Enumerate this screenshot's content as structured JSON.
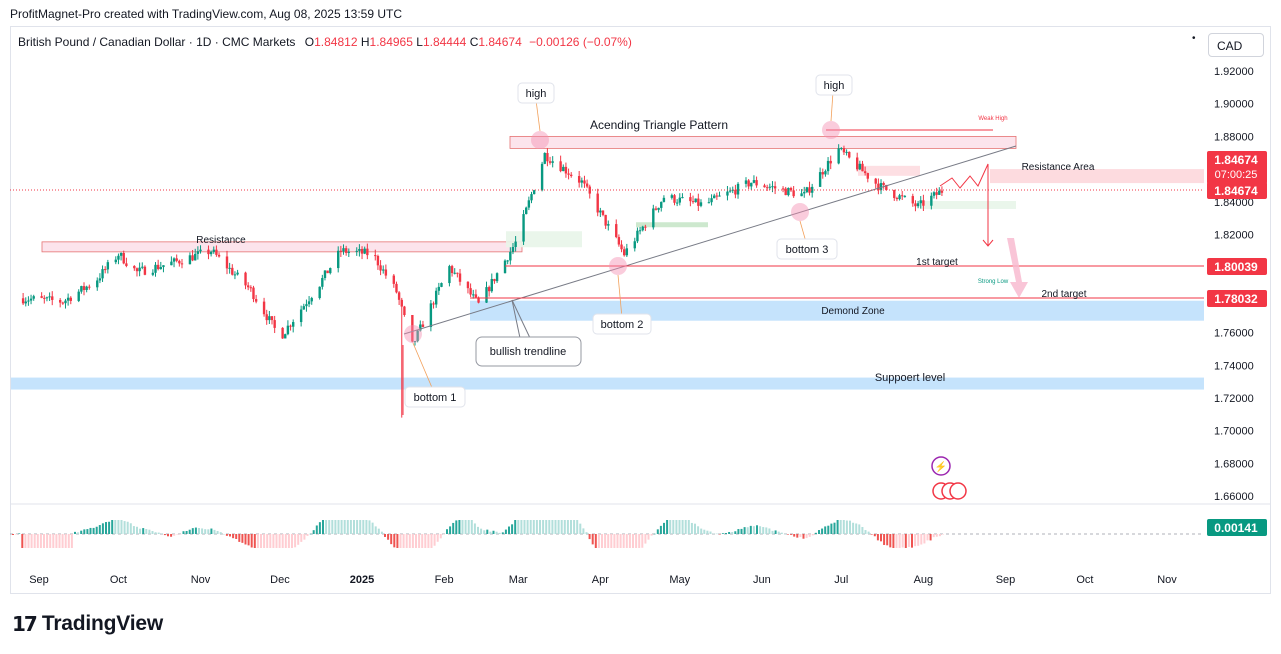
{
  "header": {
    "caption": "ProfitMagnet-Pro created with TradingView.com, Aug 08, 2025 13:59 UTC"
  },
  "symbol": {
    "name": "British Pound / Canadian Dollar · 1D · CMC Markets",
    "open_label": "O",
    "open": "1.84812",
    "high_label": "H",
    "high": "1.84965",
    "low_label": "L",
    "low": "1.84444",
    "close_label": "C",
    "close": "1.84674",
    "change": "−0.00126 (−0.07%)"
  },
  "currency_button": "CAD",
  "brand": {
    "name": "TradingView",
    "mark": "17"
  },
  "colors": {
    "up": "#089981",
    "down": "#f23645",
    "support": "#bbdefb",
    "resistance": "#f8bbd0",
    "trendline": "#787b86"
  },
  "chart_data": {
    "type": "candlestick",
    "y_axis": {
      "range": [
        1.645,
        1.935
      ],
      "ticks": [
        "1.92000",
        "1.90000",
        "1.88000",
        "1.86000",
        "1.84000",
        "1.82000",
        "1.80000",
        "1.78000",
        "1.76000",
        "1.74000",
        "1.72000",
        "1.70000",
        "1.68000",
        "1.66000"
      ]
    },
    "x_axis": {
      "labels": [
        "Sep",
        "Oct",
        "Nov",
        "Dec",
        "2025",
        "Feb",
        "Mar",
        "Apr",
        "May",
        "Jun",
        "Jul",
        "Aug",
        "Sep",
        "Oct",
        "Nov"
      ],
      "label_dates": [
        "2024-09-01",
        "2024-10-01",
        "2024-11-01",
        "2024-12-01",
        "2025-01-01",
        "2025-02-01",
        "2025-03-01",
        "2025-04-01",
        "2025-05-01",
        "2025-06-01",
        "2025-07-01",
        "2025-08-01",
        "2025-09-01",
        "2025-10-01",
        "2025-11-01"
      ],
      "bold": [
        "2025"
      ]
    },
    "price_path": [
      {
        "date": "2024-08-25",
        "price": 1.781
      },
      {
        "date": "2024-09-10",
        "price": 1.779
      },
      {
        "date": "2024-09-22",
        "price": 1.791
      },
      {
        "date": "2024-10-01",
        "price": 1.808
      },
      {
        "date": "2024-10-08",
        "price": 1.797
      },
      {
        "date": "2024-10-22",
        "price": 1.803
      },
      {
        "date": "2024-11-05",
        "price": 1.81
      },
      {
        "date": "2024-11-20",
        "price": 1.786
      },
      {
        "date": "2024-12-01",
        "price": 1.757
      },
      {
        "date": "2024-12-16",
        "price": 1.79
      },
      {
        "date": "2024-12-24",
        "price": 1.81
      },
      {
        "date": "2025-01-05",
        "price": 1.808
      },
      {
        "date": "2025-01-14",
        "price": 1.785
      },
      {
        "date": "2025-01-20",
        "price": 1.752
      },
      {
        "date": "2025-02-03",
        "price": 1.8
      },
      {
        "date": "2025-02-14",
        "price": 1.777
      },
      {
        "date": "2025-02-28",
        "price": 1.815
      },
      {
        "date": "2025-03-11",
        "price": 1.869
      },
      {
        "date": "2025-03-25",
        "price": 1.852
      },
      {
        "date": "2025-04-10",
        "price": 1.808
      },
      {
        "date": "2025-04-25",
        "price": 1.843
      },
      {
        "date": "2025-05-10",
        "price": 1.838
      },
      {
        "date": "2025-05-28",
        "price": 1.852
      },
      {
        "date": "2025-06-17",
        "price": 1.844
      },
      {
        "date": "2025-06-30",
        "price": 1.872
      },
      {
        "date": "2025-07-15",
        "price": 1.85
      },
      {
        "date": "2025-07-30",
        "price": 1.837
      },
      {
        "date": "2025-08-08",
        "price": 1.84674
      }
    ],
    "extremes": {
      "wick_low": {
        "date": "2025-01-16",
        "price": 1.708
      }
    },
    "price_labels": [
      {
        "price": 1.84674,
        "text": "1.84674",
        "sub": "07:00:25",
        "color": "#f23645"
      },
      {
        "price": 1.84674,
        "text": "1.84674",
        "color": "#f23645"
      },
      {
        "price": 1.80039,
        "text": "1.80039",
        "color": "#f23645"
      },
      {
        "price": 1.78032,
        "text": "1.78032",
        "color": "#f23645"
      }
    ],
    "annotations": {
      "pattern_title": "Acending Triangle Pattern",
      "high_labels": [
        "high",
        "high"
      ],
      "bottom_labels": [
        "bottom 1",
        "bottom 2",
        "bottom 3"
      ],
      "resistance": "Resistance",
      "resistance_area": "Resistance Area",
      "first_target": "1st target",
      "second_target": "2nd target",
      "demand_zone": "Demond Zone",
      "support_level": "Suppoert level",
      "bullish_trendline": "bullish trendline",
      "weak_high": "Weak High",
      "strong_low": "Strong Low"
    },
    "oscillator": {
      "value": "0.00141"
    }
  }
}
